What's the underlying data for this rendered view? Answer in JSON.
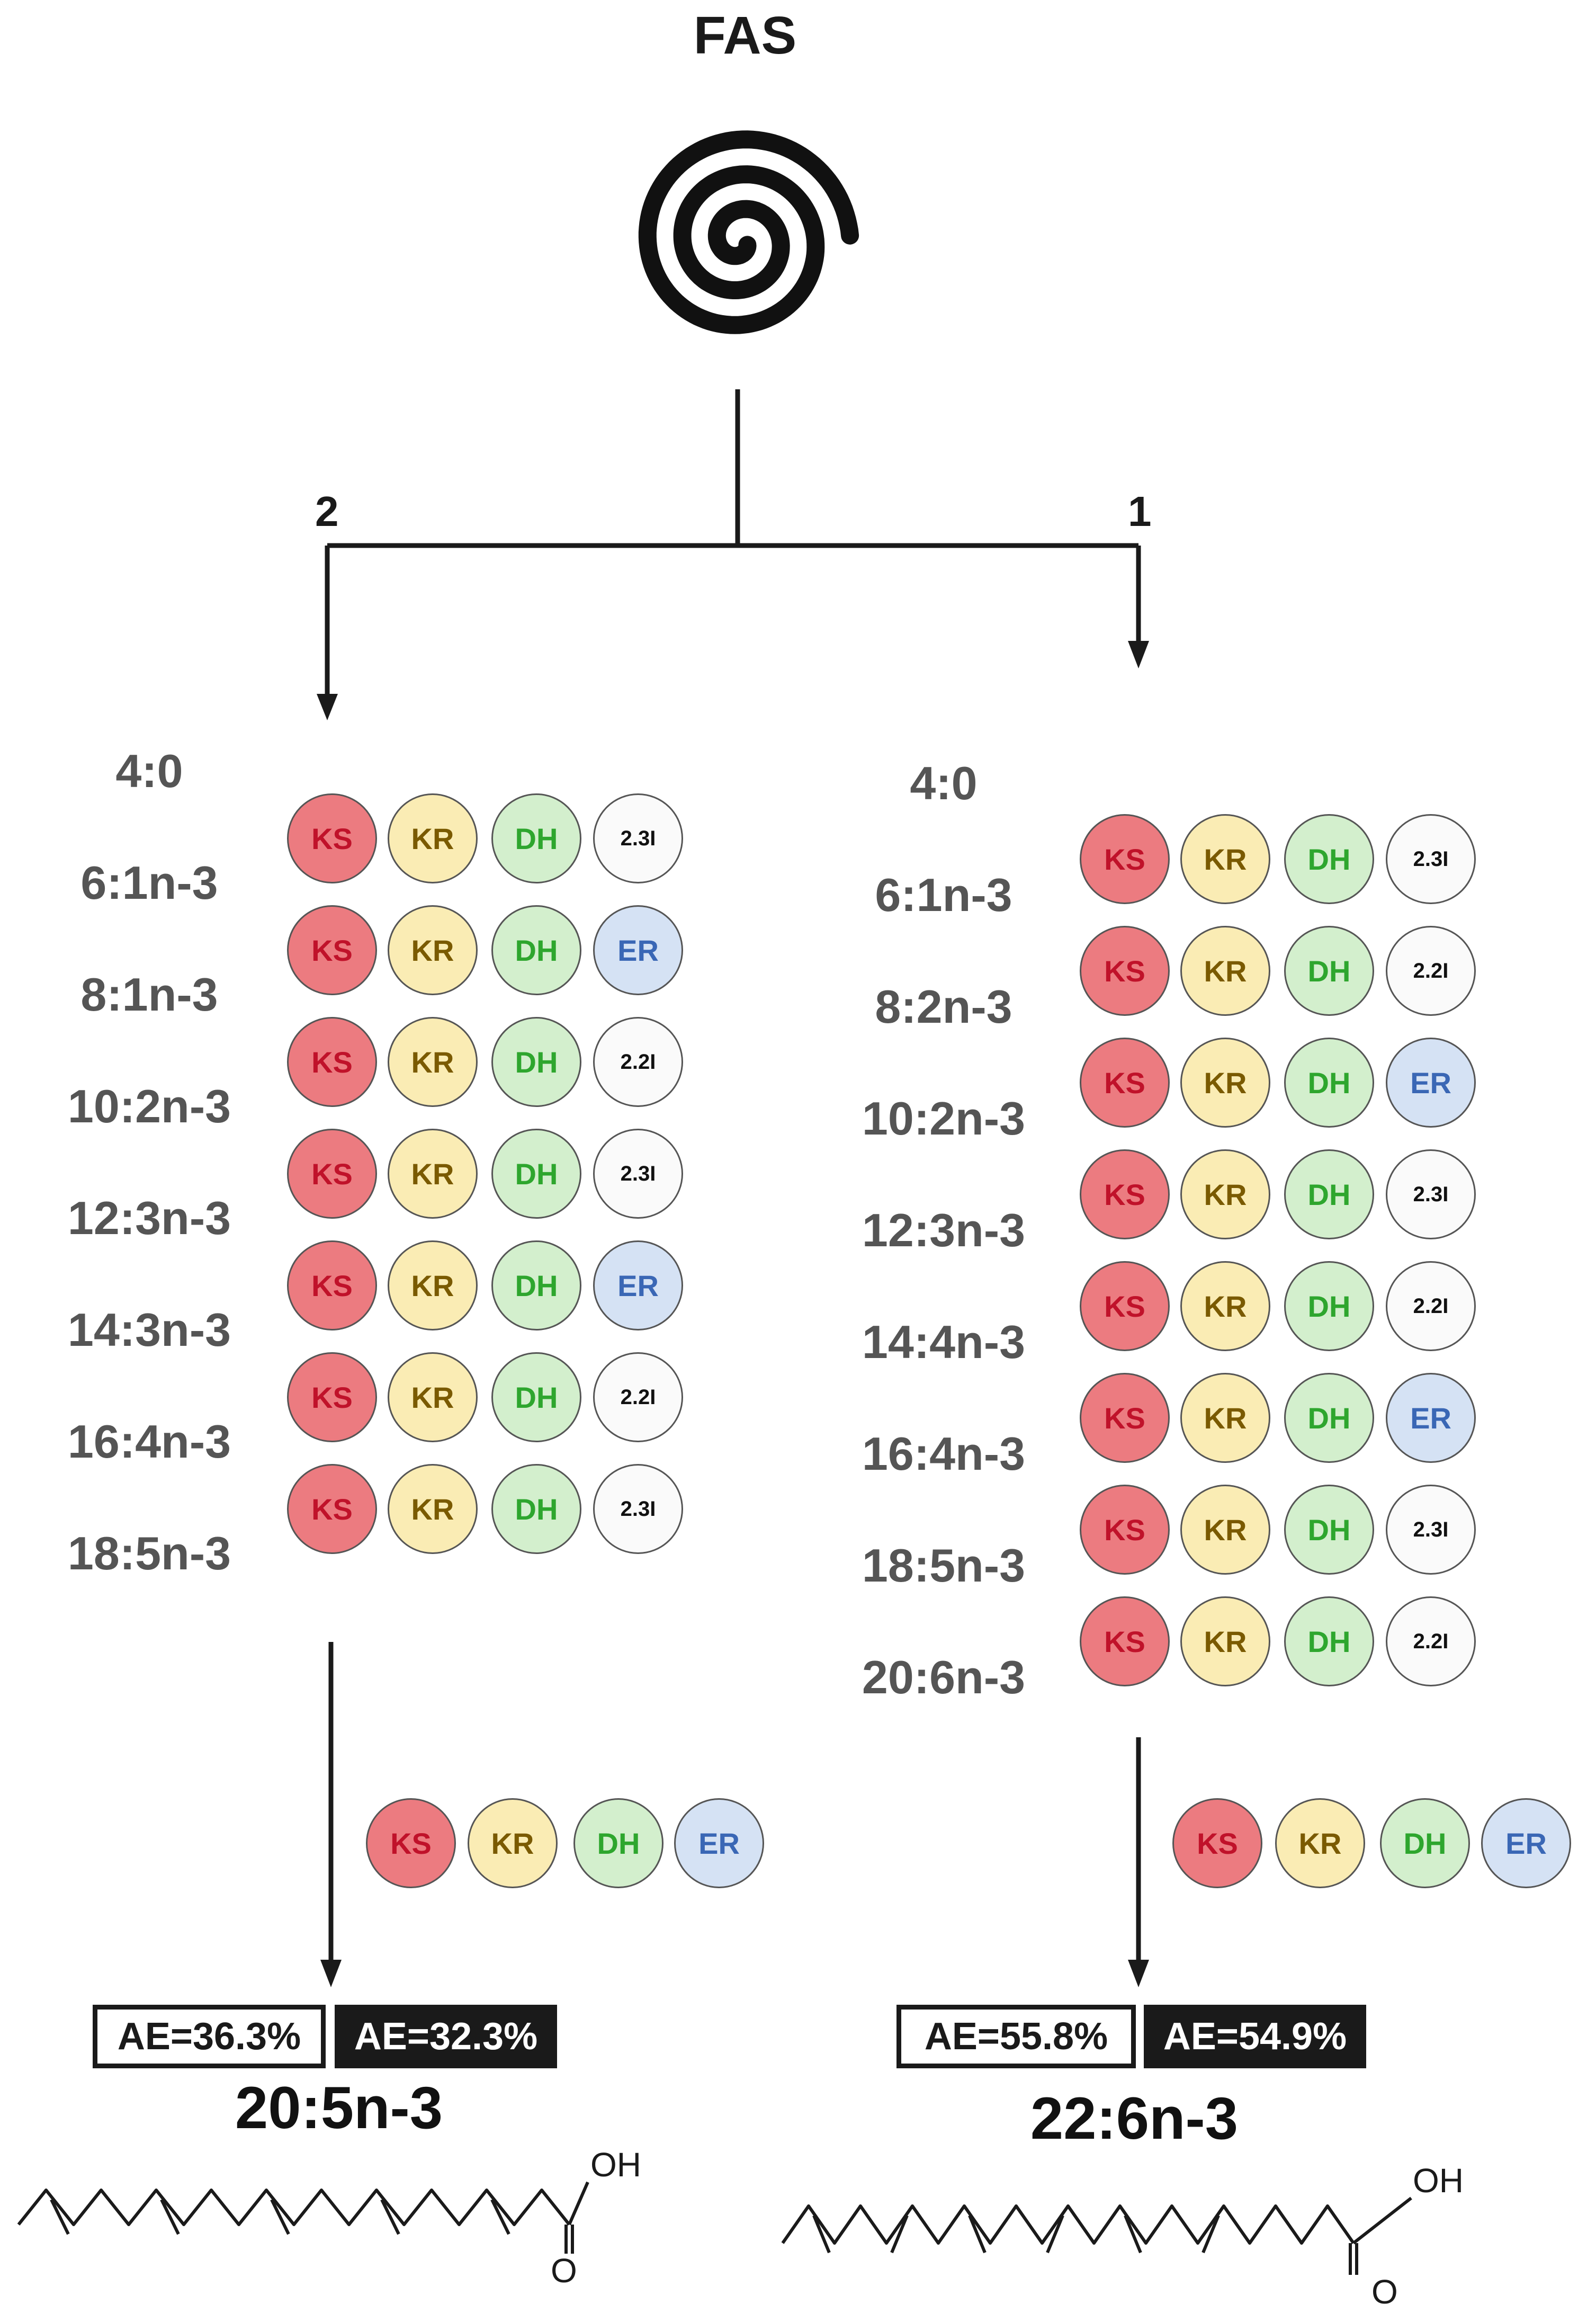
{
  "title": "FAS",
  "branch_left_label": "2",
  "branch_right_label": "1",
  "enzymes": {
    "KS": {
      "label": "KS",
      "fill": "#ec7b80",
      "text": "#c0122a"
    },
    "KR": {
      "label": "KR",
      "fill": "#faecb4",
      "text": "#7a5a00"
    },
    "DH": {
      "label": "DH",
      "fill": "#d3efcd",
      "text": "#2ea62e"
    },
    "ER": {
      "label": "ER",
      "fill": "#d5e2f4",
      "text": "#3a67b5"
    },
    "2.3I": {
      "label": "2.3I",
      "fill": "#fafafa",
      "text": "#111111"
    },
    "2.2I": {
      "label": "2.2I",
      "fill": "#fafafa",
      "text": "#111111"
    }
  },
  "left_pathway": {
    "intermediates": [
      "4:0",
      "6:1n-3",
      "8:1n-3",
      "10:2n-3",
      "12:3n-3",
      "14:3n-3",
      "16:4n-3",
      "18:5n-3"
    ],
    "cycles": [
      "2.3I",
      "ER",
      "2.2I",
      "2.3I",
      "ER",
      "2.2I",
      "2.3I"
    ],
    "final_cycle": [
      "KS",
      "KR",
      "DH",
      "ER"
    ],
    "ae_open": "AE=36.3%",
    "ae_filled": "AE=32.3%",
    "product": "20:5n-3"
  },
  "right_pathway": {
    "intermediates": [
      "4:0",
      "6:1n-3",
      "8:2n-3",
      "10:2n-3",
      "12:3n-3",
      "14:4n-3",
      "16:4n-3",
      "18:5n-3",
      "20:6n-3"
    ],
    "cycles": [
      "2.3I",
      "2.2I",
      "ER",
      "2.3I",
      "2.2I",
      "ER",
      "2.3I",
      "2.2I"
    ],
    "final_cycle": [
      "KS",
      "KR",
      "DH",
      "ER"
    ],
    "ae_open": "AE=55.8%",
    "ae_filled": "AE=54.9%",
    "product": "22:6n-3"
  },
  "structure_labels": {
    "hydroxyl": "OH",
    "oxygen": "O"
  },
  "colors": {
    "line": "#1a1a1a",
    "label": "#555555"
  }
}
